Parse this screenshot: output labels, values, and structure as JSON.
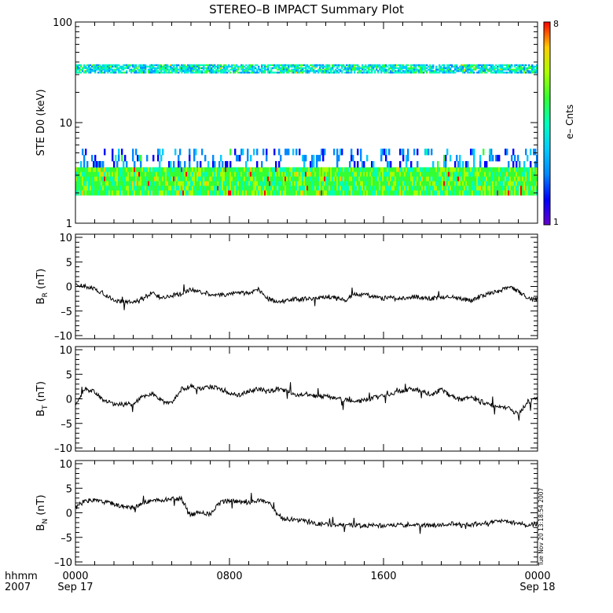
{
  "title": "STEREO–B IMPACT Summary Plot",
  "timestamp": "Tue Nov 20 13:18:54 2007",
  "time_axis": {
    "row1_label": "hhmm",
    "row2_label": "2007",
    "ticks": [
      {
        "hour": 0,
        "time": "0000",
        "date": "Sep 17"
      },
      {
        "hour": 8,
        "time": "0800",
        "date": ""
      },
      {
        "hour": 16,
        "time": "1600",
        "date": ""
      },
      {
        "hour": 24,
        "time": "0000",
        "date": "Sep 18"
      }
    ]
  },
  "colorbar": {
    "label": "e– Cnts",
    "min_label": "1",
    "max_label": "8"
  },
  "chart_data": [
    {
      "type": "heatmap",
      "panel": "STE D0",
      "ylabel": "STE D0 (keV)",
      "yscale": "log",
      "ylim": [
        1,
        100
      ],
      "ytick_labels": [
        "1",
        "10",
        "100"
      ],
      "xlim": [
        0,
        24
      ],
      "bands": [
        {
          "ymin": 1.9,
          "ymax": 3.6,
          "typical_counts": "4-6",
          "coverage": "continuous"
        },
        {
          "ymin": 3.6,
          "ymax": 5.5,
          "typical_counts": "1-3",
          "coverage": "sparse"
        },
        {
          "ymin": 31,
          "ymax": 38,
          "typical_counts": "2-5",
          "coverage": "continuous"
        }
      ]
    },
    {
      "type": "line",
      "panel": "BR",
      "ylabel": "B_R (nT)",
      "ylim": [
        -10,
        10
      ],
      "ytick_labels": [
        "–10",
        "–5",
        "0",
        "5",
        "10"
      ],
      "x": [
        0,
        0.5,
        1,
        1.5,
        2,
        2.5,
        3,
        3.5,
        4,
        4.5,
        5,
        5.5,
        6,
        6.5,
        7,
        7.5,
        8,
        8.5,
        9,
        9.5,
        10,
        10.5,
        11,
        11.5,
        12,
        12.5,
        13,
        13.5,
        14,
        14.5,
        15,
        15.5,
        16,
        16.5,
        17,
        17.5,
        18,
        18.5,
        19,
        19.5,
        20,
        20.5,
        21,
        21.5,
        22,
        22.5,
        23,
        23.5,
        24
      ],
      "values": [
        0.3,
        0,
        -0.5,
        -1.5,
        -2.8,
        -3.2,
        -3,
        -2.5,
        -1.2,
        -2.5,
        -1.8,
        -1.5,
        -0.5,
        -1.2,
        -1.5,
        -1.8,
        -1.5,
        -1.2,
        -1.5,
        -0.5,
        -2.5,
        -3.2,
        -2.8,
        -2.6,
        -2.5,
        -2.4,
        -2,
        -2.2,
        -2.8,
        -1.5,
        -1.7,
        -2,
        -2.4,
        -2.3,
        -2.5,
        -2.1,
        -2.2,
        -2.4,
        -2.2,
        -2.0,
        -2.4,
        -2.9,
        -1.9,
        -1.5,
        -1.0,
        0,
        -1,
        -2.5,
        -2.6
      ]
    },
    {
      "type": "line",
      "panel": "BT",
      "ylabel": "B_T (nT)",
      "ylim": [
        -10,
        10
      ],
      "ytick_labels": [
        "–10",
        "–5",
        "0",
        "5",
        "10"
      ],
      "x": [
        0,
        0.5,
        1,
        1.5,
        2,
        2.5,
        3,
        3.5,
        4,
        4.5,
        5,
        5.5,
        6,
        6.5,
        7,
        7.5,
        8,
        8.5,
        9,
        9.5,
        10,
        10.5,
        11,
        11.5,
        12,
        12.5,
        13,
        13.5,
        14,
        14.5,
        15,
        15.5,
        16,
        16.5,
        17,
        17.5,
        18,
        18.5,
        19,
        19.5,
        20,
        20.5,
        21,
        21.5,
        22,
        22.5,
        23,
        23.5,
        24
      ],
      "values": [
        -1,
        2,
        1.5,
        -0.5,
        -1,
        -1.2,
        -1,
        0.5,
        1,
        -0.5,
        -1,
        2,
        2.5,
        2,
        2.5,
        2,
        1,
        0.8,
        1.5,
        2,
        1.5,
        2,
        1.5,
        0.8,
        1,
        0.5,
        0.5,
        0.2,
        -0.2,
        -0.7,
        -0.3,
        0.2,
        0.7,
        1.2,
        1.7,
        2.0,
        1.5,
        0.8,
        2.0,
        0.5,
        -0.2,
        0.2,
        -0.4,
        -1.2,
        -1.6,
        -2.0,
        -3.2,
        -0.5,
        0
      ]
    },
    {
      "type": "line",
      "panel": "BN",
      "ylabel": "B_N (nT)",
      "ylim": [
        -10,
        10
      ],
      "ytick_labels": [
        "–10",
        "–5",
        "0",
        "5",
        "10"
      ],
      "x": [
        0,
        0.5,
        1,
        1.5,
        2,
        2.5,
        3,
        3.5,
        4,
        4.5,
        5,
        5.5,
        6,
        6.5,
        7,
        7.5,
        8,
        8.5,
        9,
        9.5,
        10,
        10.5,
        11,
        11.5,
        12,
        12.5,
        13,
        13.5,
        14,
        14.5,
        15,
        15.5,
        16,
        16.5,
        17,
        17.5,
        18,
        18.5,
        19,
        19.5,
        20,
        20.5,
        21,
        21.5,
        22,
        22.5,
        23,
        23.5,
        24
      ],
      "values": [
        1,
        2.5,
        2.5,
        2.2,
        1.8,
        1.2,
        1,
        2,
        2.5,
        2.5,
        3,
        2.8,
        -0.5,
        0.2,
        -0.3,
        2,
        2.5,
        2.2,
        2,
        2.5,
        2.2,
        -0.5,
        -1.2,
        -1.5,
        -1.8,
        -2.2,
        -2.3,
        -2.5,
        -2.5,
        -2.6,
        -2.7,
        -2.5,
        -2.7,
        -2.5,
        -2.5,
        -2.3,
        -2.5,
        -2.6,
        -2.4,
        -2.2,
        -2.6,
        -2.4,
        -2.2,
        -2,
        -1.5,
        -1.8,
        -2.2,
        -2.5,
        -2.2
      ]
    }
  ]
}
